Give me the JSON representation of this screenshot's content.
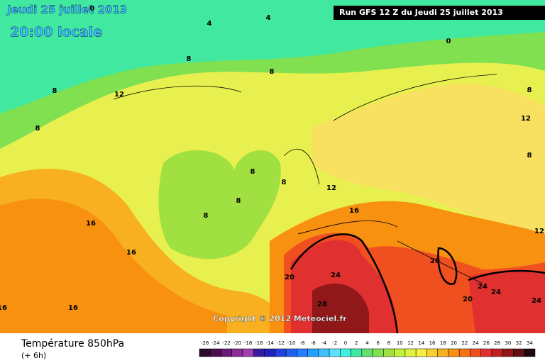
{
  "header": {
    "date": "Jeudi 25 juillet 2013",
    "time": "20:00 locale",
    "run": "Run GFS 12 Z du Jeudi 25 juillet 2013"
  },
  "copyright": "Copyright © 2012 Meteociel.fr",
  "footer": {
    "title": "Température 850hPa",
    "lead": "(+ 6h)"
  },
  "legend": {
    "ticks": [
      -26,
      -24,
      -22,
      -20,
      -18,
      -16,
      -14,
      -12,
      -10,
      -8,
      -6,
      -4,
      -2,
      0,
      2,
      4,
      6,
      8,
      10,
      12,
      14,
      16,
      18,
      20,
      22,
      24,
      26,
      28,
      30,
      32,
      34
    ],
    "colors": [
      "#2b0a2b",
      "#4a0e4a",
      "#6a1b7a",
      "#8a2b9a",
      "#a040b0",
      "#3a1aa0",
      "#2020c0",
      "#2040e0",
      "#2060f0",
      "#2080ff",
      "#20a0ff",
      "#40c0ff",
      "#60e0ff",
      "#40f0e0",
      "#40e8a0",
      "#60e070",
      "#80e050",
      "#a0e040",
      "#c0f040",
      "#e0f040",
      "#f8f040",
      "#f8d030",
      "#f8b020",
      "#f89010",
      "#f87010",
      "#f05020",
      "#e03030",
      "#c02020",
      "#901818",
      "#601010",
      "#200808"
    ]
  },
  "contour_labels": [
    0,
    4,
    4,
    0,
    8,
    8,
    8,
    12,
    8,
    8,
    12,
    8,
    8,
    8,
    12,
    8,
    8,
    16,
    12,
    16,
    16,
    20,
    20,
    24,
    24,
    24,
    28,
    20,
    24,
    16,
    16
  ]
}
